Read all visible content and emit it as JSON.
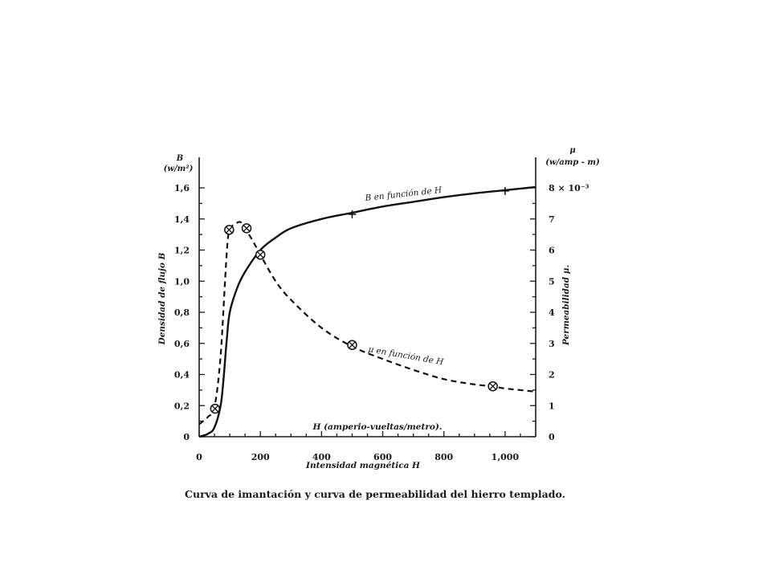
{
  "caption": "Curva de imantación y curva de permeabilidad del hierro templado.",
  "chart_data": {
    "type": "line",
    "xlabel": "Intensidad magnética H",
    "x_units_label": "H (amperio-vueltas/metro).",
    "xlim": [
      0,
      1100
    ],
    "x_ticks": [
      0,
      200,
      400,
      600,
      800,
      1000
    ],
    "x_tick_labels": [
      "0",
      "200",
      "400",
      "600",
      "800",
      "1,000"
    ],
    "y_left": {
      "symbol": "B",
      "units": "(w/m²)",
      "label": "Densidad de flujo B",
      "lim": [
        0,
        1.6
      ],
      "ticks": [
        0,
        0.2,
        0.4,
        0.6,
        0.8,
        1.0,
        1.2,
        1.4,
        1.6
      ],
      "tick_labels": [
        "0",
        "0,2",
        "0,4",
        "0,6",
        "0,8",
        "1,0",
        "1,2",
        "1,4",
        "1,6"
      ]
    },
    "y_right": {
      "symbol": "μ",
      "units": "(w/amp - m)",
      "label": "Permeabilidad μ.",
      "lim": [
        0,
        8
      ],
      "ticks": [
        0,
        1,
        2,
        3,
        4,
        5,
        6,
        7,
        8
      ],
      "tick_labels": [
        "0",
        "1",
        "2",
        "3",
        "4",
        "5",
        "6",
        "7",
        "8 × 10⁻³"
      ]
    },
    "series": [
      {
        "name": "B en función de H",
        "axis": "left",
        "style": "solid",
        "marker": "plus",
        "x": [
          0,
          30,
          50,
          70,
          80,
          90,
          100,
          125,
          150,
          200,
          250,
          300,
          400,
          500,
          600,
          700,
          800,
          900,
          1000,
          1100
        ],
        "y": [
          0,
          0.02,
          0.06,
          0.2,
          0.38,
          0.62,
          0.8,
          0.96,
          1.06,
          1.2,
          1.28,
          1.34,
          1.4,
          1.44,
          1.48,
          1.51,
          1.54,
          1.565,
          1.585,
          1.605
        ],
        "marker_points": [
          [
            500,
            1.43
          ],
          [
            1000,
            1.58
          ]
        ]
      },
      {
        "name": "μ en función de H",
        "axis": "right",
        "style": "dashed",
        "marker": "circled-x",
        "x": [
          0,
          30,
          50,
          70,
          90,
          100,
          120,
          135,
          150,
          175,
          200,
          250,
          300,
          400,
          500,
          600,
          700,
          800,
          900,
          960,
          1000,
          1100
        ],
        "y": [
          0.4,
          0.65,
          0.95,
          2.6,
          5.9,
          6.65,
          6.85,
          6.9,
          6.7,
          6.3,
          5.85,
          5.0,
          4.4,
          3.5,
          2.9,
          2.5,
          2.15,
          1.85,
          1.68,
          1.62,
          1.55,
          1.45
        ],
        "marker_points": [
          [
            52,
            0.9
          ],
          [
            98,
            6.65
          ],
          [
            155,
            6.7
          ],
          [
            200,
            5.85
          ],
          [
            500,
            2.95
          ],
          [
            960,
            1.62
          ]
        ]
      }
    ],
    "grid": false
  }
}
